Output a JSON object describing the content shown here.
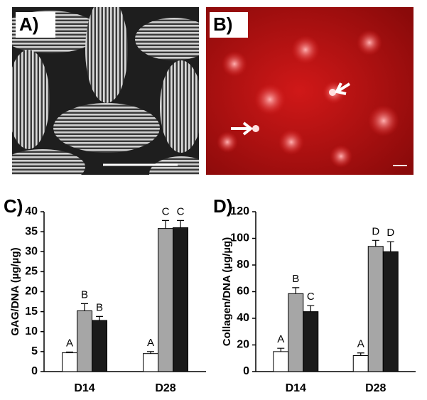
{
  "panel_labels": [
    "A)",
    "B)"
  ],
  "chart_data": [
    {
      "type": "bar",
      "title": "C)",
      "y_label": "GAG/DNA (µg/µg)",
      "categories": [
        "D14",
        "D28"
      ],
      "ylim": [
        0,
        40
      ],
      "yticks": [
        0,
        5,
        10,
        15,
        20,
        25,
        30,
        35,
        40
      ],
      "series": [
        {
          "color": "#ffffff",
          "values": [
            4.7,
            4.5
          ],
          "errors": [
            0.2,
            0.5
          ],
          "labels": [
            "A",
            "A"
          ]
        },
        {
          "color": "#a6a6a6",
          "values": [
            15.2,
            35.8
          ],
          "errors": [
            1.8,
            2.0
          ],
          "labels": [
            "B",
            "C"
          ]
        },
        {
          "color": "#1a1a1a",
          "values": [
            12.8,
            36.0
          ],
          "errors": [
            1.0,
            1.8
          ],
          "labels": [
            "B",
            "C"
          ]
        }
      ]
    },
    {
      "type": "bar",
      "title": "D)",
      "y_label": "Collagen/DNA (µg/µg)",
      "categories": [
        "D14",
        "D28"
      ],
      "ylim": [
        0,
        120
      ],
      "yticks": [
        0,
        20,
        40,
        60,
        80,
        100,
        120
      ],
      "series": [
        {
          "color": "#ffffff",
          "values": [
            15,
            12
          ],
          "errors": [
            2.5,
            2
          ],
          "labels": [
            "A",
            "A"
          ]
        },
        {
          "color": "#a6a6a6",
          "values": [
            58.5,
            94
          ],
          "errors": [
            4.5,
            4.5
          ],
          "labels": [
            "B",
            "D"
          ]
        },
        {
          "color": "#1a1a1a",
          "values": [
            45,
            90
          ],
          "errors": [
            4.5,
            7.5
          ],
          "labels": [
            "C",
            "D"
          ]
        }
      ]
    }
  ]
}
